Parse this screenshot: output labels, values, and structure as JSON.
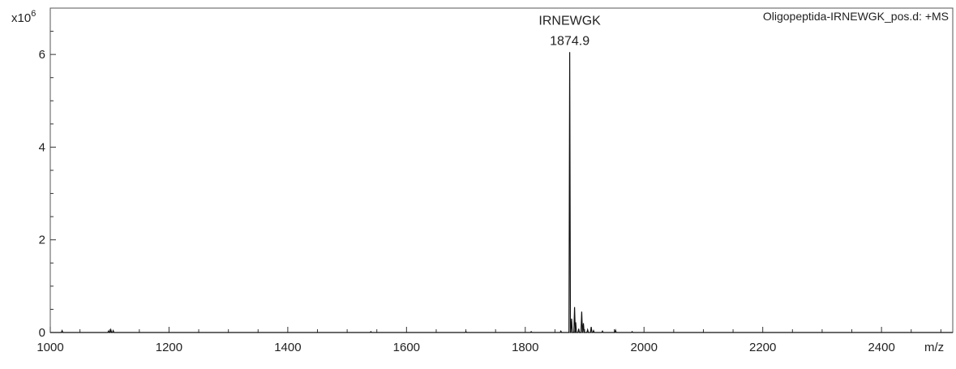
{
  "chart_data": {
    "type": "line",
    "title": "Oligopeptida-IRNEWGK_pos.d: +MS",
    "y_scale_label": "x10",
    "y_scale_exponent": "6",
    "xlabel": "m/z",
    "ylabel": "",
    "xlim": [
      1000,
      2520
    ],
    "ylim": [
      0,
      7
    ],
    "x_ticks": [
      "1000",
      "1200",
      "1400",
      "1600",
      "1800",
      "2000",
      "2200",
      "2400"
    ],
    "y_ticks": [
      "0",
      "2",
      "4",
      "6"
    ],
    "grid": false,
    "legend": "none",
    "series": [
      {
        "x": [
          1020,
          1098,
          1102,
          1106,
          1540,
          1700,
          1810,
          1860,
          1874.9,
          1878,
          1883,
          1885,
          1890,
          1895,
          1898,
          1905,
          1911,
          1915,
          1930,
          1952,
          1980
        ],
        "y": [
          0.04,
          0.03,
          0.06,
          0.04,
          0.02,
          0.02,
          0.02,
          0.03,
          6.05,
          0.3,
          0.55,
          0.22,
          0.08,
          0.45,
          0.2,
          0.06,
          0.12,
          0.04,
          0.03,
          0.05,
          0.02
        ]
      }
    ],
    "annotations": [
      {
        "x": 1874.9,
        "label": "IRNEWGK",
        "value": "1874.9"
      }
    ],
    "colors": {
      "line": "#111111",
      "axis": "#333333",
      "frame": "#555555"
    }
  }
}
